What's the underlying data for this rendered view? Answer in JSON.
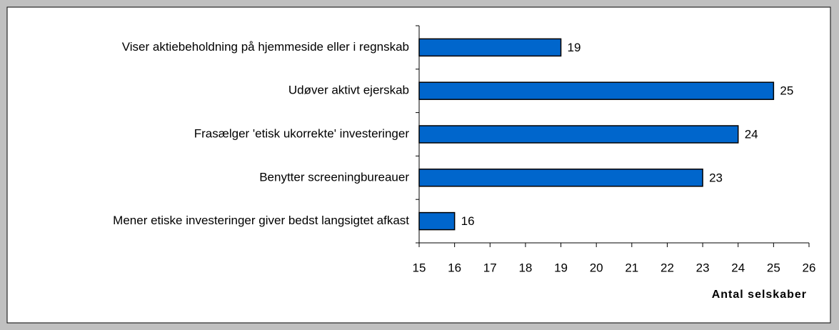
{
  "chart_data": {
    "type": "bar",
    "orientation": "horizontal",
    "categories": [
      "Viser aktiebeholdning på hjemmeside eller i regnskab",
      "Udøver aktivt ejerskab",
      "Frasælger 'etisk ukorrekte' investeringer",
      "Benytter screeningbureauer",
      "Mener etiske investeringer giver bedst langsigtet afkast"
    ],
    "values": [
      19,
      25,
      24,
      23,
      16
    ],
    "color": "#0066cc",
    "xlabel": "Antal selskaber",
    "xlim": [
      15,
      26
    ],
    "xticks": [
      15,
      16,
      17,
      18,
      19,
      20,
      21,
      22,
      23,
      24,
      25,
      26
    ],
    "grid": false
  }
}
